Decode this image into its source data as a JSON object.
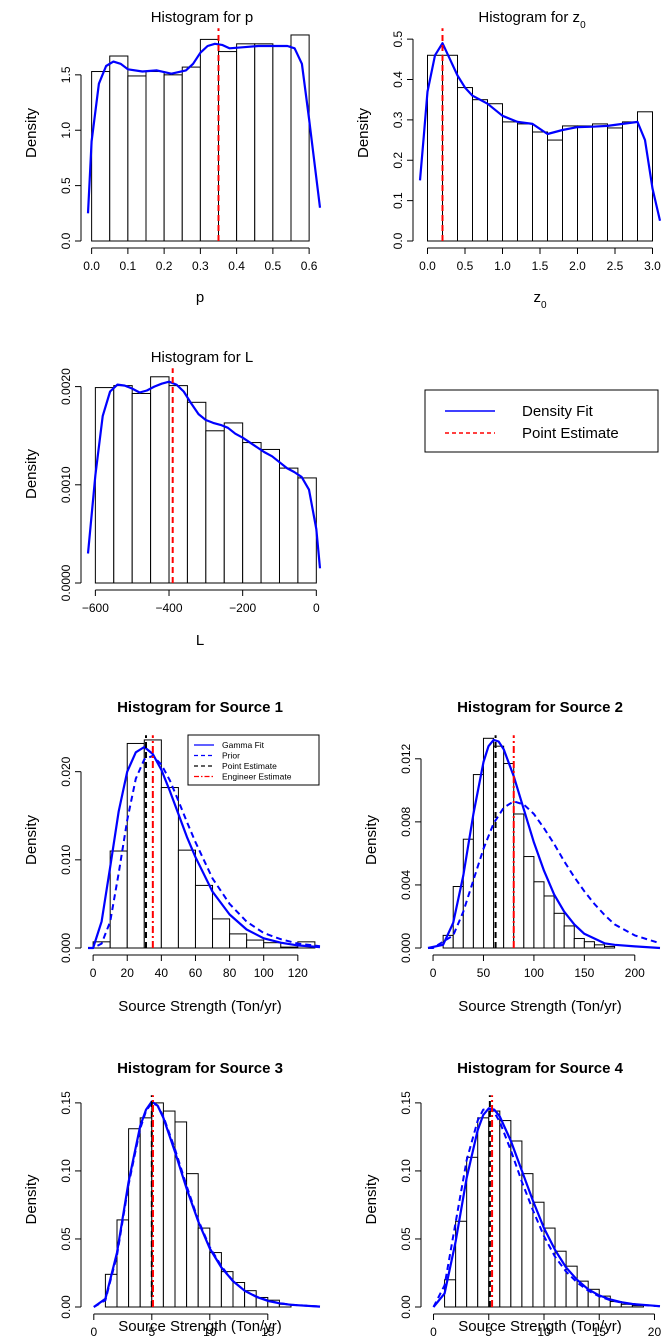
{
  "colors": {
    "density": "#0000ff",
    "point": "#ff0000",
    "prior": "#0000ff",
    "point_black": "#000000",
    "engineer": "#ff0000"
  },
  "legend_top": {
    "items": [
      "Density Fit",
      "Point Estimate"
    ]
  },
  "legend_source1": {
    "items": [
      "Gamma Fit",
      "Prior",
      "Point Estimate",
      "Engineer Estimate"
    ]
  },
  "chart_data": [
    {
      "type": "bar",
      "title_main": "Histogram for p",
      "title_sub": "",
      "xlabel_main": "p",
      "xlabel_sub": "",
      "ylabel": "Density",
      "xlim": [
        -0.01,
        0.63
      ],
      "ylim": [
        0,
        1.95
      ],
      "xticks": [
        0.0,
        0.1,
        0.2,
        0.3,
        0.4,
        0.5,
        0.6
      ],
      "xtick_labels": [
        "0.0",
        "0.1",
        "0.2",
        "0.3",
        "0.4",
        "0.5",
        "0.6"
      ],
      "yticks": [
        0.0,
        0.5,
        1.0,
        1.5
      ],
      "ytick_labels": [
        "0.0",
        "0.5",
        "1.0",
        "1.5"
      ],
      "bin_edges": [
        0.0,
        0.05,
        0.1,
        0.15,
        0.2,
        0.25,
        0.3,
        0.35,
        0.4,
        0.45,
        0.5,
        0.55,
        0.6
      ],
      "values": [
        1.53,
        1.67,
        1.49,
        1.53,
        1.5,
        1.57,
        1.82,
        1.71,
        1.78,
        1.78,
        1.76,
        1.86
      ],
      "density": {
        "x": [
          -0.01,
          0.0,
          0.02,
          0.04,
          0.06,
          0.08,
          0.1,
          0.14,
          0.18,
          0.22,
          0.26,
          0.28,
          0.3,
          0.32,
          0.34,
          0.36,
          0.38,
          0.42,
          0.46,
          0.5,
          0.54,
          0.56,
          0.58,
          0.6,
          0.63
        ],
        "y": [
          0.25,
          0.9,
          1.42,
          1.58,
          1.62,
          1.6,
          1.55,
          1.53,
          1.54,
          1.51,
          1.54,
          1.6,
          1.7,
          1.76,
          1.78,
          1.77,
          1.74,
          1.75,
          1.76,
          1.76,
          1.76,
          1.74,
          1.6,
          1.1,
          0.3
        ]
      },
      "vlines": [
        {
          "x": 0.35,
          "style": "point"
        }
      ]
    },
    {
      "type": "bar",
      "title_main": "Histogram for z",
      "title_sub": "0",
      "xlabel_main": "z",
      "xlabel_sub": "0",
      "ylabel": "Density",
      "xlim": [
        -0.1,
        3.1
      ],
      "ylim": [
        0,
        0.535
      ],
      "xticks": [
        0.0,
        0.5,
        1.0,
        1.5,
        2.0,
        2.5,
        3.0
      ],
      "xtick_labels": [
        "0.0",
        "0.5",
        "1.0",
        "1.5",
        "2.0",
        "2.5",
        "3.0"
      ],
      "yticks": [
        0.0,
        0.1,
        0.2,
        0.3,
        0.4,
        0.5
      ],
      "ytick_labels": [
        "0.0",
        "0.1",
        "0.2",
        "0.3",
        "0.4",
        "0.5"
      ],
      "bin_edges": [
        0.0,
        0.2,
        0.4,
        0.6,
        0.8,
        1.0,
        1.2,
        1.4,
        1.6,
        1.8,
        2.0,
        2.2,
        2.4,
        2.6,
        2.8,
        3.0
      ],
      "values": [
        0.46,
        0.46,
        0.38,
        0.35,
        0.34,
        0.295,
        0.29,
        0.27,
        0.25,
        0.285,
        0.285,
        0.29,
        0.28,
        0.295,
        0.32
      ],
      "density": {
        "x": [
          -0.1,
          -0.05,
          0.0,
          0.1,
          0.2,
          0.3,
          0.4,
          0.5,
          0.6,
          0.8,
          1.0,
          1.2,
          1.4,
          1.6,
          1.8,
          2.0,
          2.2,
          2.4,
          2.6,
          2.8,
          2.9,
          3.0,
          3.1
        ],
        "y": [
          0.15,
          0.26,
          0.37,
          0.46,
          0.49,
          0.45,
          0.41,
          0.38,
          0.36,
          0.34,
          0.31,
          0.295,
          0.29,
          0.265,
          0.275,
          0.282,
          0.283,
          0.285,
          0.29,
          0.295,
          0.25,
          0.13,
          0.05
        ]
      },
      "vlines": [
        {
          "x": 0.2,
          "style": "point"
        }
      ]
    },
    {
      "type": "bar",
      "title_main": "Histogram for L",
      "title_sub": "",
      "xlabel_main": "L",
      "xlabel_sub": "",
      "ylabel": "Density",
      "xlim": [
        -620,
        10
      ],
      "ylim": [
        0,
        0.00222
      ],
      "xticks": [
        -600,
        -400,
        -200,
        0
      ],
      "xtick_labels": [
        "−600",
        "−400",
        "−200",
        "0"
      ],
      "yticks": [
        0,
        0.001,
        0.002
      ],
      "ytick_labels": [
        "0.0000",
        "0.0010",
        "0.0020"
      ],
      "bin_edges": [
        -600,
        -550,
        -500,
        -450,
        -400,
        -350,
        -300,
        -250,
        -200,
        -150,
        -100,
        -50,
        0
      ],
      "values": [
        0.00199,
        0.00201,
        0.00193,
        0.0021,
        0.00201,
        0.00184,
        0.00155,
        0.00163,
        0.00143,
        0.00136,
        0.00117,
        0.00107
      ],
      "density": {
        "x": [
          -620,
          -600,
          -580,
          -560,
          -540,
          -520,
          -500,
          -480,
          -460,
          -440,
          -420,
          -400,
          -380,
          -360,
          -340,
          -320,
          -300,
          -280,
          -260,
          -240,
          -220,
          -200,
          -180,
          -160,
          -140,
          -120,
          -100,
          -80,
          -60,
          -40,
          -20,
          0,
          10
        ],
        "y": [
          0.0003,
          0.0011,
          0.0017,
          0.00195,
          0.00202,
          0.00201,
          0.00198,
          0.00194,
          0.00196,
          0.002,
          0.00203,
          0.00205,
          0.00202,
          0.00195,
          0.00183,
          0.00172,
          0.00166,
          0.00163,
          0.00161,
          0.00158,
          0.00152,
          0.00148,
          0.00143,
          0.00138,
          0.00133,
          0.00129,
          0.00123,
          0.00117,
          0.00113,
          0.00108,
          0.00095,
          0.00055,
          0.00015
        ]
      },
      "vlines": [
        {
          "x": -390,
          "style": "point"
        }
      ]
    },
    {
      "type": "bar",
      "title_main": "Histogram for Source 1",
      "title_sub": "",
      "xlabel_main": "Source Strength (Ton/yr)",
      "xlabel_sub": "",
      "ylabel": "Density",
      "xlim": [
        -3,
        133
      ],
      "ylim": [
        0,
        0.0245
      ],
      "xticks": [
        0,
        20,
        40,
        60,
        80,
        100,
        120
      ],
      "xtick_labels": [
        "0",
        "20",
        "40",
        "60",
        "80",
        "100",
        "120"
      ],
      "yticks": [
        0,
        0.01,
        0.02
      ],
      "ytick_labels": [
        "0.000",
        "0.010",
        "0.020"
      ],
      "bin_edges": [
        0,
        10,
        20,
        30,
        40,
        50,
        60,
        70,
        80,
        90,
        100,
        110,
        120,
        130
      ],
      "values": [
        0.0007,
        0.011,
        0.0232,
        0.0236,
        0.0182,
        0.0111,
        0.0071,
        0.0033,
        0.0016,
        0.0009,
        0.0006,
        0.0001,
        0.0007
      ],
      "gamma_fit": {
        "x": [
          -3,
          0,
          5,
          10,
          15,
          20,
          25,
          30,
          35,
          40,
          45,
          50,
          55,
          60,
          70,
          80,
          90,
          100,
          110,
          120,
          133
        ],
        "y": [
          0,
          0,
          0.003,
          0.0092,
          0.0155,
          0.02,
          0.0222,
          0.0228,
          0.022,
          0.0202,
          0.0178,
          0.0152,
          0.0126,
          0.0103,
          0.0064,
          0.0038,
          0.0021,
          0.0011,
          0.0006,
          0.0003,
          0.0001
        ]
      },
      "prior": {
        "x": [
          -3,
          0,
          5,
          10,
          15,
          20,
          25,
          30,
          35,
          40,
          45,
          50,
          55,
          60,
          70,
          80,
          90,
          100,
          110,
          120,
          133
        ],
        "y": [
          0,
          0,
          0.0005,
          0.003,
          0.0085,
          0.0145,
          0.0192,
          0.0214,
          0.0218,
          0.0208,
          0.019,
          0.0167,
          0.0143,
          0.012,
          0.0079,
          0.005,
          0.003,
          0.0017,
          0.001,
          0.0005,
          0.0002
        ]
      },
      "vlines": [
        {
          "x": 31,
          "style": "point_black"
        },
        {
          "x": 35,
          "style": "engineer"
        }
      ]
    },
    {
      "type": "bar",
      "title_main": "Histogram for Source 2",
      "title_sub": "",
      "xlabel_main": "Source Strength (Ton/yr)",
      "xlabel_sub": "",
      "ylabel": "Density",
      "xlim": [
        -5,
        225
      ],
      "ylim": [
        0,
        0.0137
      ],
      "xticks": [
        0,
        50,
        100,
        150,
        200
      ],
      "xtick_labels": [
        "0",
        "50",
        "100",
        "150",
        "200"
      ],
      "yticks": [
        0,
        0.004,
        0.008,
        0.012
      ],
      "ytick_labels": [
        "0.000",
        "0.004",
        "0.008",
        "0.012"
      ],
      "bin_edges": [
        10,
        20,
        30,
        40,
        50,
        60,
        70,
        80,
        90,
        100,
        110,
        120,
        130,
        140,
        150,
        160,
        170,
        180
      ],
      "values": [
        0.0008,
        0.0039,
        0.0069,
        0.011,
        0.0133,
        0.0128,
        0.0117,
        0.0085,
        0.0058,
        0.0042,
        0.0033,
        0.0022,
        0.0014,
        0.0006,
        0.0004,
        0.0002,
        0.0001
      ],
      "gamma_fit": {
        "x": [
          -5,
          10,
          20,
          30,
          40,
          50,
          55,
          60,
          65,
          70,
          80,
          90,
          100,
          110,
          120,
          130,
          140,
          150,
          160,
          170,
          180,
          200,
          225
        ],
        "y": [
          0,
          0.0002,
          0.0016,
          0.0046,
          0.0085,
          0.0118,
          0.0128,
          0.0132,
          0.0131,
          0.0126,
          0.0109,
          0.0088,
          0.0067,
          0.0049,
          0.0034,
          0.0023,
          0.0015,
          0.0009,
          0.0006,
          0.0003,
          0.0002,
          0.0001,
          0
        ]
      },
      "prior": {
        "x": [
          -5,
          0,
          20,
          30,
          40,
          50,
          60,
          70,
          80,
          90,
          100,
          110,
          120,
          130,
          140,
          150,
          160,
          170,
          180,
          200,
          225
        ],
        "y": [
          0,
          0,
          0.0008,
          0.0023,
          0.0043,
          0.0063,
          0.0079,
          0.0089,
          0.0093,
          0.0091,
          0.0085,
          0.0076,
          0.0066,
          0.0055,
          0.0045,
          0.0036,
          0.0028,
          0.0021,
          0.0015,
          0.0008,
          0.0003
        ]
      },
      "vlines": [
        {
          "x": 62,
          "style": "point_black"
        },
        {
          "x": 80,
          "style": "engineer"
        }
      ]
    },
    {
      "type": "bar",
      "title_main": "Histogram for Source 3",
      "title_sub": "",
      "xlabel_main": "Source Strength (Ton/yr)",
      "xlabel_sub": "",
      "ylabel": "Density",
      "xlim": [
        -0.5,
        19.5
      ],
      "ylim": [
        0,
        0.158
      ],
      "xticks": [
        0,
        5,
        10,
        15
      ],
      "xtick_labels": [
        "0",
        "5",
        "10",
        "15"
      ],
      "yticks": [
        0,
        0.05,
        0.1,
        0.15
      ],
      "ytick_labels": [
        "0.00",
        "0.05",
        "0.10",
        "0.15"
      ],
      "bin_edges": [
        1,
        2,
        3,
        4,
        5,
        6,
        7,
        8,
        9,
        10,
        11,
        12,
        13,
        14,
        15,
        16,
        17
      ],
      "values": [
        0.024,
        0.064,
        0.131,
        0.139,
        0.15,
        0.144,
        0.136,
        0.098,
        0.058,
        0.04,
        0.026,
        0.018,
        0.012,
        0.007,
        0.005,
        0.002
      ],
      "gamma_fit": {
        "x": [
          0,
          1,
          2,
          3,
          4,
          4.5,
          5,
          5.5,
          6,
          7,
          8,
          9,
          10,
          11,
          12,
          13,
          14,
          15,
          16,
          17,
          19.5
        ],
        "y": [
          0,
          0.006,
          0.04,
          0.092,
          0.133,
          0.145,
          0.151,
          0.148,
          0.139,
          0.114,
          0.087,
          0.063,
          0.043,
          0.029,
          0.019,
          0.012,
          0.0075,
          0.0045,
          0.0027,
          0.0016,
          0.0003
        ]
      },
      "prior": {
        "x": [
          0,
          1,
          2,
          3,
          4,
          4.5,
          5,
          5.5,
          6,
          7,
          8,
          9,
          10,
          11,
          12,
          13,
          14,
          15,
          16,
          17,
          19.5
        ],
        "y": [
          0,
          0.005,
          0.038,
          0.09,
          0.131,
          0.144,
          0.15,
          0.148,
          0.14,
          0.116,
          0.089,
          0.064,
          0.044,
          0.03,
          0.019,
          0.012,
          0.0078,
          0.0048,
          0.0029,
          0.0017,
          0.0004
        ]
      },
      "vlines": [
        {
          "x": 5.0,
          "style": "point_black"
        },
        {
          "x": 5.1,
          "style": "engineer"
        }
      ]
    },
    {
      "type": "bar",
      "title_main": "Histogram for Source 4",
      "title_sub": "",
      "xlabel_main": "Source Strength (Ton/yr)",
      "xlabel_sub": "",
      "ylabel": "Density",
      "xlim": [
        -0.5,
        20.5
      ],
      "ylim": [
        0,
        0.158
      ],
      "xticks": [
        0,
        5,
        10,
        15,
        20
      ],
      "xtick_labels": [
        "0",
        "5",
        "10",
        "15",
        "20"
      ],
      "bin_edges": [
        1,
        2,
        3,
        4,
        5,
        6,
        7,
        8,
        9,
        10,
        11,
        12,
        13,
        14,
        15,
        16,
        17,
        18,
        19
      ],
      "yticks": [
        0,
        0.05,
        0.1,
        0.15
      ],
      "ytick_labels": [
        "0.00",
        "0.05",
        "0.10",
        "0.15"
      ],
      "values": [
        0.02,
        0.063,
        0.11,
        0.139,
        0.144,
        0.137,
        0.122,
        0.098,
        0.077,
        0.058,
        0.041,
        0.03,
        0.019,
        0.013,
        0.008,
        0.004,
        0.002,
        0.001
      ],
      "gamma_fit": {
        "x": [
          0,
          1,
          2,
          3,
          4,
          4.5,
          5,
          5.5,
          6,
          7,
          8,
          9,
          10,
          11,
          12,
          13,
          14,
          15,
          16,
          17,
          18,
          20.5
        ],
        "y": [
          0,
          0.01,
          0.048,
          0.095,
          0.13,
          0.141,
          0.146,
          0.145,
          0.14,
          0.122,
          0.1,
          0.078,
          0.058,
          0.042,
          0.029,
          0.02,
          0.013,
          0.0085,
          0.0055,
          0.0035,
          0.0022,
          0.0006
        ]
      },
      "prior": {
        "x": [
          0,
          1,
          2,
          3,
          4,
          4.5,
          5,
          5.5,
          6,
          7,
          8,
          9,
          10,
          11,
          12,
          13,
          14,
          15,
          16,
          17,
          18,
          20.5
        ],
        "y": [
          0,
          0.016,
          0.062,
          0.108,
          0.137,
          0.145,
          0.146,
          0.143,
          0.136,
          0.115,
          0.092,
          0.071,
          0.052,
          0.037,
          0.026,
          0.018,
          0.012,
          0.0078,
          0.005,
          0.0032,
          0.002,
          0.0005
        ]
      },
      "vlines": [
        {
          "x": 5.1,
          "style": "point_black"
        },
        {
          "x": 5.3,
          "style": "engineer"
        }
      ]
    }
  ]
}
